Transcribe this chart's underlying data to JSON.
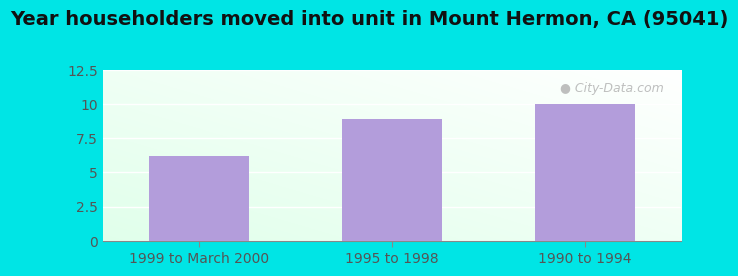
{
  "title": "Year householders moved into unit in Mount Hermon, CA (95041)",
  "categories": [
    "1999 to March 2000",
    "1995 to 1998",
    "1990 to 1994"
  ],
  "values": [
    6.2,
    8.9,
    10.0
  ],
  "bar_color": "#b39ddb",
  "ylim": [
    0,
    12.5
  ],
  "yticks": [
    0,
    2.5,
    5,
    7.5,
    10,
    12.5
  ],
  "background_outer": "#00e5e5",
  "title_fontsize": 14,
  "tick_fontsize": 10,
  "watermark": "City-Data.com"
}
